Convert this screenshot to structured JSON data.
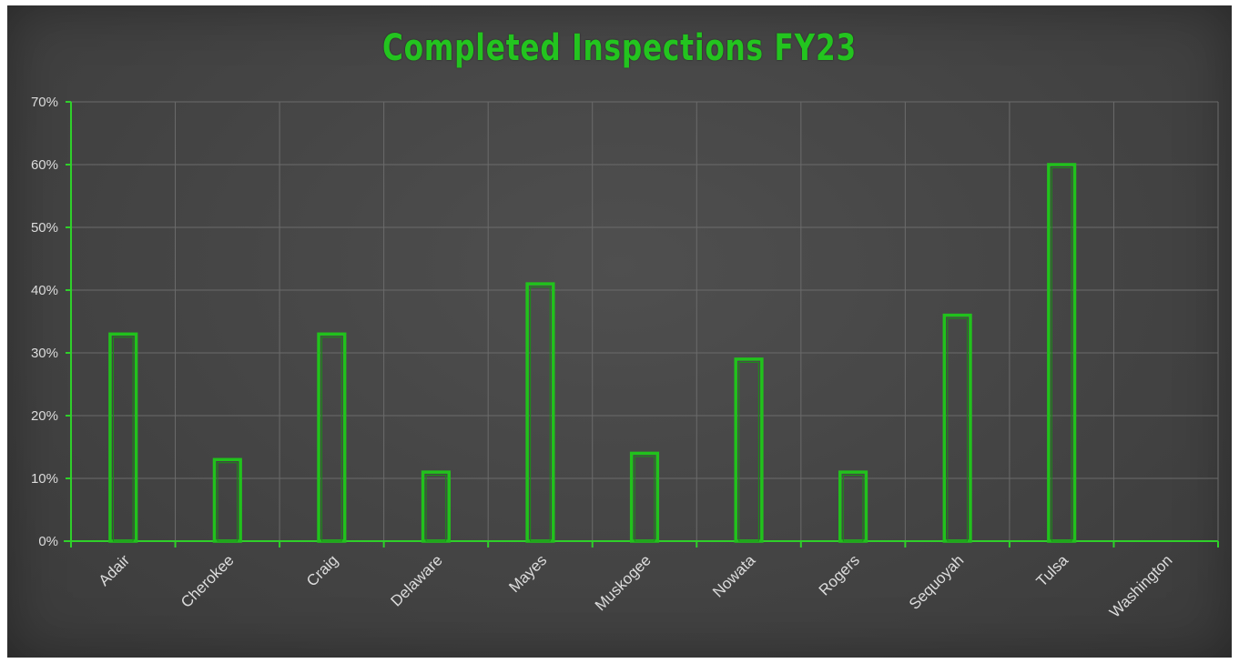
{
  "chart_data": {
    "type": "bar",
    "title": "Completed Inspections FY23",
    "xlabel": "",
    "ylabel": "",
    "categories": [
      "Adair",
      "Cherokee",
      "Craig",
      "Delaware",
      "Mayes",
      "Muskogee",
      "Nowata",
      "Rogers",
      "Sequoyah",
      "Tulsa",
      "Washington"
    ],
    "values": [
      0.33,
      0.13,
      0.33,
      0.11,
      0.41,
      0.14,
      0.29,
      0.11,
      0.36,
      0.6,
      0
    ],
    "ylim": [
      0,
      0.7
    ],
    "yticks": [
      0,
      0.1,
      0.2,
      0.3,
      0.4,
      0.5,
      0.6,
      0.7
    ],
    "ytick_labels": [
      "0%",
      "10%",
      "20%",
      "30%",
      "40%",
      "50%",
      "60%",
      "70%"
    ],
    "grid": true,
    "legend": "none",
    "colors": {
      "bar_outline": "#21c21c",
      "title": "#23c41f",
      "axis": "#2fd02a",
      "gridline": "#6b6b6b",
      "tick_label": "#dcdcdc",
      "background": "#474747"
    }
  }
}
